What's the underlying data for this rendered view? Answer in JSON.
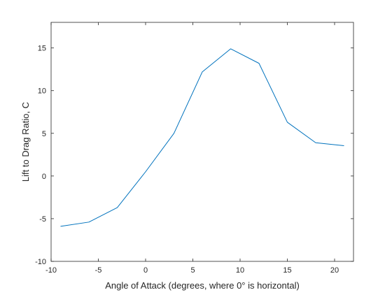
{
  "chart_data": {
    "type": "line",
    "title": "",
    "xlabel": "Angle of Attack (degrees, where 0° is horizontal)",
    "ylabel": "Lift to Drag Ratio, C",
    "xlim": [
      -10,
      22
    ],
    "ylim": [
      -10,
      18
    ],
    "x_ticks": [
      -10,
      -5,
      0,
      5,
      10,
      15,
      20
    ],
    "y_ticks": [
      -10,
      -5,
      0,
      5,
      10,
      15
    ],
    "grid": false,
    "series": [
      {
        "color": "#0072BD",
        "x": [
          -9,
          -6,
          -3,
          0,
          3,
          6,
          9,
          12,
          15,
          18,
          21
        ],
        "y": [
          -5.9,
          -5.4,
          -3.7,
          0.5,
          5.0,
          12.2,
          14.9,
          13.2,
          6.3,
          3.9,
          3.55
        ]
      }
    ]
  }
}
